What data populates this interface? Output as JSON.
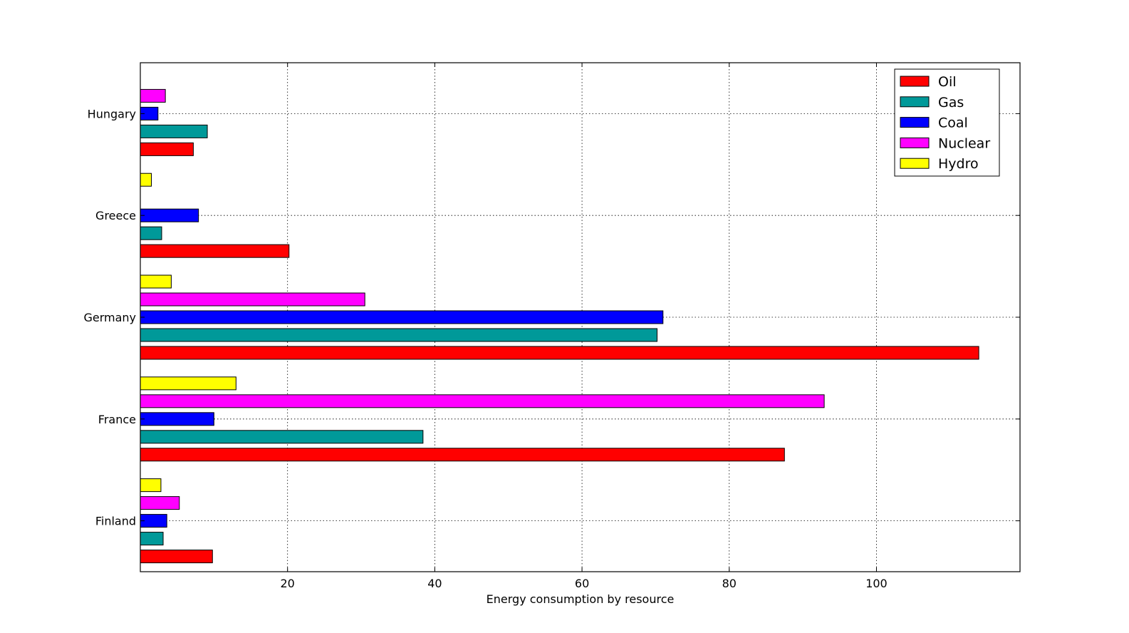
{
  "chart_data": {
    "type": "bar",
    "orientation": "horizontal",
    "title": "",
    "xlabel": "Energy consumption by resource",
    "ylabel": "",
    "categories": [
      "Finland",
      "France",
      "Germany",
      "Greece",
      "Hungary"
    ],
    "xlim": [
      0,
      119.5
    ],
    "xticks": [
      20,
      40,
      60,
      80,
      100
    ],
    "grid": true,
    "legend_position": "top-right",
    "series": [
      {
        "name": "Oil",
        "color": "#ff0000",
        "values": [
          9.8,
          87.5,
          113.9,
          20.2,
          7.2
        ]
      },
      {
        "name": "Gas",
        "color": "#009999",
        "values": [
          3.1,
          38.4,
          70.2,
          2.9,
          9.1
        ]
      },
      {
        "name": "Coal",
        "color": "#0000ff",
        "values": [
          3.6,
          10.0,
          71.0,
          7.9,
          2.4
        ]
      },
      {
        "name": "Nuclear",
        "color": "#ff00ff",
        "values": [
          5.3,
          92.9,
          30.5,
          0,
          3.4
        ]
      },
      {
        "name": "Hydro",
        "color": "#ffff00",
        "values": [
          2.8,
          13.0,
          4.2,
          1.5,
          0
        ]
      }
    ]
  }
}
